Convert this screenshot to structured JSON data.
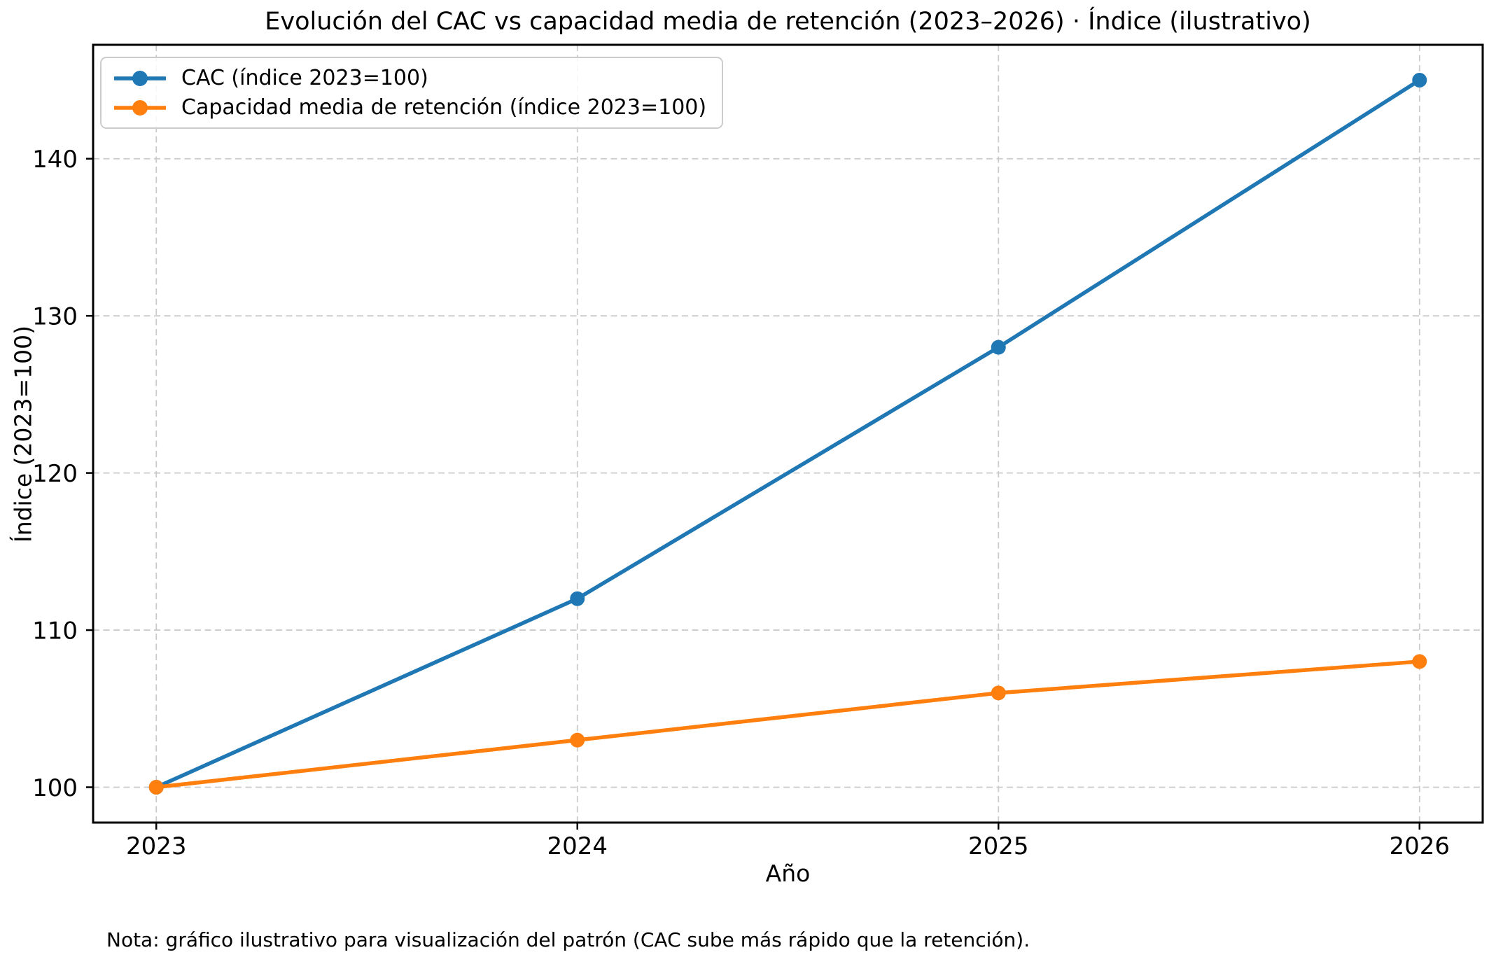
{
  "chart_data": {
    "type": "line",
    "title": "Evolución del CAC vs capacidad media de retención (2023–2026) · Índice (ilustrativo)",
    "xlabel": "Año",
    "ylabel": "Índice (2023=100)",
    "categories": [
      "2023",
      "2024",
      "2025",
      "2026"
    ],
    "series": [
      {
        "name": "CAC (índice 2023=100)",
        "values": [
          100,
          112,
          128,
          145
        ],
        "color": "#1f77b4"
      },
      {
        "name": "Capacidad media de retención (índice 2023=100)",
        "values": [
          100,
          103,
          106,
          108
        ],
        "color": "#ff7f0e"
      }
    ],
    "y_ticks": [
      100,
      110,
      120,
      130,
      140
    ],
    "xlim_idx": [
      -0.15,
      3.15
    ],
    "ylim": [
      97.75,
      147.25
    ],
    "grid": true,
    "grid_style": "dashed",
    "legend_position": "upper left",
    "marker": "o",
    "line_width": 5.5,
    "marker_radius": 10.5
  },
  "note": "Nota: gráfico ilustrativo para visualización del patrón (CAC sube más rápido que la retención)."
}
